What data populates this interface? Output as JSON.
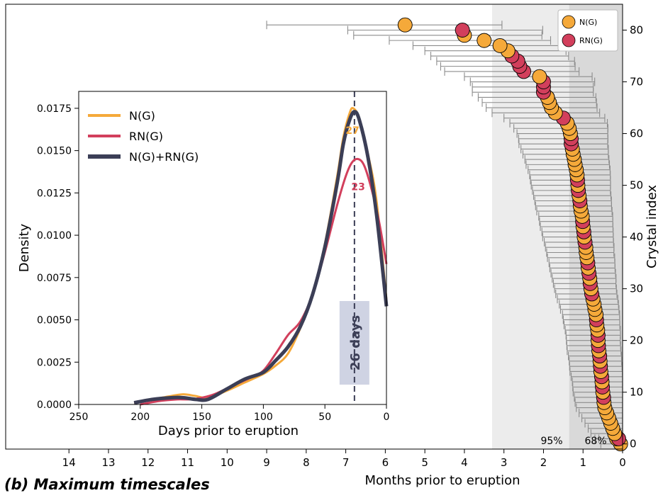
{
  "caption": "(b) Maximum timescales",
  "colors": {
    "ng": "#f5a93a",
    "rng": "#d23f5c",
    "combined": "#3b3e56",
    "band95": "#ececec",
    "band68": "#d9d9d9",
    "errorbar": "#8c8c8c",
    "median_box": "#cfd3e3"
  },
  "chart_data": [
    {
      "id": "main",
      "type": "scatter",
      "xlabel": "Months prior to eruption",
      "ylabel": "Crystal index",
      "xlim": [
        15.6,
        0
      ],
      "ylim": [
        -1,
        85
      ],
      "x_ticks": [
        "14",
        "13",
        "12",
        "11",
        "10",
        "9",
        "8",
        "7",
        "6",
        "5",
        "4",
        "3",
        "2",
        "1",
        "0"
      ],
      "y_ticks": [
        "0",
        "10",
        "20",
        "30",
        "40",
        "50",
        "60",
        "70",
        "80"
      ],
      "y_tick_values": [
        0,
        10,
        20,
        30,
        40,
        50,
        60,
        70,
        80
      ],
      "x_tick_values": [
        14,
        13,
        12,
        11,
        10,
        9,
        8,
        7,
        6,
        5,
        4,
        3,
        2,
        1,
        0
      ],
      "bands": [
        {
          "label": "95%",
          "from": 3.3,
          "to": 0,
          "color": "#ececec"
        },
        {
          "label": "68%",
          "from": 1.35,
          "to": 0,
          "color": "#d9d9d9"
        }
      ],
      "legend": {
        "placement": "top-right",
        "entries": [
          {
            "name": "N(G)",
            "color": "#f5a93a"
          },
          {
            "name": "RN(G)",
            "color": "#d23f5c"
          }
        ]
      },
      "series": [
        {
          "name": "N(G)",
          "color": "#f5a93a",
          "points": [
            {
              "i": 0,
              "x": 0.05,
              "err": 0.5
            },
            {
              "i": 1,
              "x": 0.15,
              "err": 0.55
            },
            {
              "i": 2,
              "x": 0.2,
              "err": 0.6
            },
            {
              "i": 3,
              "x": 0.25,
              "err": 0.62
            },
            {
              "i": 4,
              "x": 0.3,
              "err": 0.65
            },
            {
              "i": 5,
              "x": 0.35,
              "err": 0.68
            },
            {
              "i": 6,
              "x": 0.4,
              "err": 0.7
            },
            {
              "i": 7,
              "x": 0.45,
              "err": 0.72
            },
            {
              "i": 8,
              "x": 0.47,
              "err": 0.73
            },
            {
              "i": 10,
              "x": 0.5,
              "err": 0.75
            },
            {
              "i": 12,
              "x": 0.52,
              "err": 0.75
            },
            {
              "i": 14,
              "x": 0.55,
              "err": 0.78
            },
            {
              "i": 16,
              "x": 0.57,
              "err": 0.78
            },
            {
              "i": 18,
              "x": 0.6,
              "err": 0.8
            },
            {
              "i": 20,
              "x": 0.62,
              "err": 0.8
            },
            {
              "i": 22,
              "x": 0.63,
              "err": 0.82
            },
            {
              "i": 23,
              "x": 0.65,
              "err": 0.83
            },
            {
              "i": 25,
              "x": 0.67,
              "err": 0.85
            },
            {
              "i": 26,
              "x": 0.7,
              "err": 0.87
            },
            {
              "i": 27,
              "x": 0.72,
              "err": 0.88
            },
            {
              "i": 28,
              "x": 0.75,
              "err": 0.9
            },
            {
              "i": 30,
              "x": 0.8,
              "err": 0.92
            },
            {
              "i": 32,
              "x": 0.83,
              "err": 0.95
            },
            {
              "i": 34,
              "x": 0.87,
              "err": 0.97
            },
            {
              "i": 36,
              "x": 0.9,
              "err": 1.0
            },
            {
              "i": 37,
              "x": 0.92,
              "err": 1.0
            },
            {
              "i": 38,
              "x": 0.93,
              "err": 1.02
            },
            {
              "i": 40,
              "x": 0.97,
              "err": 1.05
            },
            {
              "i": 42,
              "x": 1.0,
              "err": 1.08
            },
            {
              "i": 44,
              "x": 1.02,
              "err": 1.1
            },
            {
              "i": 45,
              "x": 1.05,
              "err": 1.12
            },
            {
              "i": 46,
              "x": 1.07,
              "err": 1.13
            },
            {
              "i": 48,
              "x": 1.1,
              "err": 1.15
            },
            {
              "i": 50,
              "x": 1.13,
              "err": 1.18
            },
            {
              "i": 52,
              "x": 1.15,
              "err": 1.2
            },
            {
              "i": 53,
              "x": 1.17,
              "err": 1.22
            },
            {
              "i": 54,
              "x": 1.2,
              "err": 1.24
            },
            {
              "i": 55,
              "x": 1.22,
              "err": 1.25
            },
            {
              "i": 56,
              "x": 1.25,
              "err": 1.27
            },
            {
              "i": 57,
              "x": 1.27,
              "err": 1.3
            },
            {
              "i": 60,
              "x": 1.32,
              "err": 1.35
            },
            {
              "i": 61,
              "x": 1.35,
              "err": 1.4
            },
            {
              "i": 62,
              "x": 1.4,
              "err": 1.45
            },
            {
              "i": 64,
              "x": 1.7,
              "err": 1.6
            },
            {
              "i": 65,
              "x": 1.8,
              "err": 1.65
            },
            {
              "i": 66,
              "x": 1.85,
              "err": 1.7
            },
            {
              "i": 67,
              "x": 1.9,
              "err": 1.75
            },
            {
              "i": 71,
              "x": 2.1,
              "err": 1.9
            },
            {
              "i": 76,
              "x": 2.9,
              "err": 2.1
            },
            {
              "i": 77,
              "x": 3.1,
              "err": 2.2
            },
            {
              "i": 78,
              "x": 3.5,
              "err": 2.4
            },
            {
              "i": 79,
              "x": 4.0,
              "err": 2.8
            },
            {
              "i": 81,
              "x": 5.5,
              "err": 3.5
            }
          ]
        },
        {
          "name": "RN(G)",
          "color": "#d23f5c",
          "points": [
            {
              "i": 1,
              "x": 0.1,
              "err": 0.5
            },
            {
              "i": 9,
              "x": 0.48,
              "err": 0.74
            },
            {
              "i": 11,
              "x": 0.51,
              "err": 0.75
            },
            {
              "i": 13,
              "x": 0.53,
              "err": 0.77
            },
            {
              "i": 15,
              "x": 0.56,
              "err": 0.78
            },
            {
              "i": 17,
              "x": 0.58,
              "err": 0.79
            },
            {
              "i": 19,
              "x": 0.61,
              "err": 0.8
            },
            {
              "i": 21,
              "x": 0.62,
              "err": 0.81
            },
            {
              "i": 24,
              "x": 0.66,
              "err": 0.84
            },
            {
              "i": 29,
              "x": 0.78,
              "err": 0.91
            },
            {
              "i": 31,
              "x": 0.82,
              "err": 0.93
            },
            {
              "i": 33,
              "x": 0.85,
              "err": 0.96
            },
            {
              "i": 35,
              "x": 0.88,
              "err": 0.98
            },
            {
              "i": 39,
              "x": 0.95,
              "err": 1.03
            },
            {
              "i": 41,
              "x": 0.98,
              "err": 1.06
            },
            {
              "i": 43,
              "x": 1.01,
              "err": 1.09
            },
            {
              "i": 47,
              "x": 1.08,
              "err": 1.14
            },
            {
              "i": 49,
              "x": 1.12,
              "err": 1.16
            },
            {
              "i": 51,
              "x": 1.14,
              "err": 1.19
            },
            {
              "i": 58,
              "x": 1.3,
              "err": 1.32
            },
            {
              "i": 59,
              "x": 1.3,
              "err": 1.33
            },
            {
              "i": 63,
              "x": 1.5,
              "err": 1.5
            },
            {
              "i": 68,
              "x": 2.0,
              "err": 1.8
            },
            {
              "i": 69,
              "x": 2.0,
              "err": 1.8
            },
            {
              "i": 70,
              "x": 2.0,
              "err": 1.85
            },
            {
              "i": 72,
              "x": 2.5,
              "err": 2.0
            },
            {
              "i": 73,
              "x": 2.6,
              "err": 2.0
            },
            {
              "i": 74,
              "x": 2.65,
              "err": 2.05
            },
            {
              "i": 75,
              "x": 2.8,
              "err": 2.05
            },
            {
              "i": 80,
              "x": 4.05,
              "err": 2.9
            }
          ]
        }
      ]
    },
    {
      "id": "inset",
      "type": "line",
      "xlabel": "Days prior to eruption",
      "ylabel": "Density",
      "xlim": [
        250,
        0
      ],
      "ylim": [
        0,
        0.0185
      ],
      "x_ticks": [
        "250",
        "200",
        "150",
        "100",
        "50",
        "0"
      ],
      "x_tick_values": [
        250,
        200,
        150,
        100,
        50,
        0
      ],
      "y_ticks": [
        "0.0000",
        "0.0025",
        "0.0050",
        "0.0075",
        "0.0100",
        "0.0125",
        "0.0150",
        "0.0175"
      ],
      "y_tick_values": [
        0,
        0.0025,
        0.005,
        0.0075,
        0.01,
        0.0125,
        0.015,
        0.0175
      ],
      "legend": {
        "placement": "top-left"
      },
      "median": {
        "x": 26,
        "label": "26 days"
      },
      "peak_labels": [
        {
          "series": "N(G)",
          "text": "27",
          "x": 27,
          "y": 0.0165
        },
        {
          "series": "RN(G)",
          "text": "23",
          "x": 23,
          "y": 0.0132
        }
      ],
      "series": [
        {
          "name": "N(G)",
          "color": "#f5a93a",
          "x": [
            205,
            190,
            175,
            165,
            155,
            145,
            130,
            115,
            100,
            90,
            80,
            70,
            60,
            50,
            40,
            35,
            30,
            27,
            22,
            15,
            8,
            0
          ],
          "y": [
            0.0001,
            0.0003,
            0.0005,
            0.0006,
            0.0005,
            0.0004,
            0.0008,
            0.0013,
            0.0018,
            0.0023,
            0.003,
            0.0045,
            0.0065,
            0.0095,
            0.0135,
            0.0158,
            0.0172,
            0.0175,
            0.0169,
            0.0148,
            0.012,
            0.0062
          ]
        },
        {
          "name": "RN(G)",
          "color": "#d23f5c",
          "x": [
            200,
            185,
            170,
            160,
            150,
            140,
            125,
            110,
            100,
            90,
            80,
            70,
            60,
            50,
            40,
            33,
            28,
            23,
            18,
            12,
            6,
            0
          ],
          "y": [
            0.0,
            0.0002,
            0.0003,
            0.0003,
            0.0004,
            0.0006,
            0.0011,
            0.0016,
            0.002,
            0.003,
            0.0041,
            0.0049,
            0.0065,
            0.009,
            0.0118,
            0.0135,
            0.0143,
            0.0145,
            0.0141,
            0.0127,
            0.0108,
            0.0083
          ]
        },
        {
          "name": "N(G)+RN(G)",
          "color": "#3b3e56",
          "x": [
            205,
            190,
            175,
            165,
            155,
            145,
            130,
            115,
            100,
            90,
            80,
            70,
            60,
            50,
            40,
            35,
            30,
            26,
            22,
            15,
            8,
            0
          ],
          "y": [
            0.0001,
            0.0003,
            0.0004,
            0.0004,
            0.0003,
            0.0003,
            0.0009,
            0.0015,
            0.0019,
            0.0026,
            0.0034,
            0.0046,
            0.0065,
            0.0093,
            0.0131,
            0.0154,
            0.0168,
            0.0173,
            0.0168,
            0.0146,
            0.0112,
            0.0058
          ]
        }
      ]
    }
  ]
}
